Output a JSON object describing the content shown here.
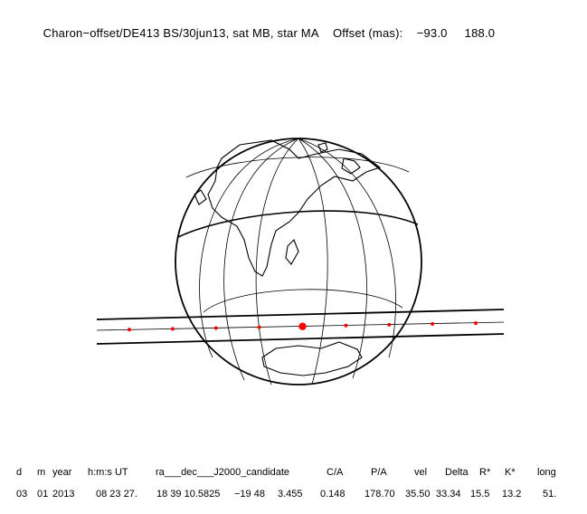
{
  "header": {
    "event_label": "Charon−offset/DE413 BS/30jun13, sat MB, star MA",
    "offset_label": "Offset (mas):",
    "offset_x": "−93.0",
    "offset_y": "188.0"
  },
  "table": {
    "columns": [
      "d",
      "m",
      "year",
      "h:m:s UT",
      "ra___dec___J2000_candidate",
      "C/A",
      "P/A",
      "vel",
      "Delta",
      "R*",
      "K*",
      "long"
    ],
    "values": [
      "03",
      "01",
      "2013",
      "08 23 27.",
      "18 39 10.5825",
      "−19 48",
      "3.455",
      "0.148",
      "178.70",
      "35.50",
      "33.34",
      "15.5",
      "13.2",
      "51."
    ]
  },
  "diagram": {
    "colors": {
      "line": "#000000",
      "dot": "#ff0000"
    },
    "track_dots": 9,
    "large_dot_index": 4
  }
}
